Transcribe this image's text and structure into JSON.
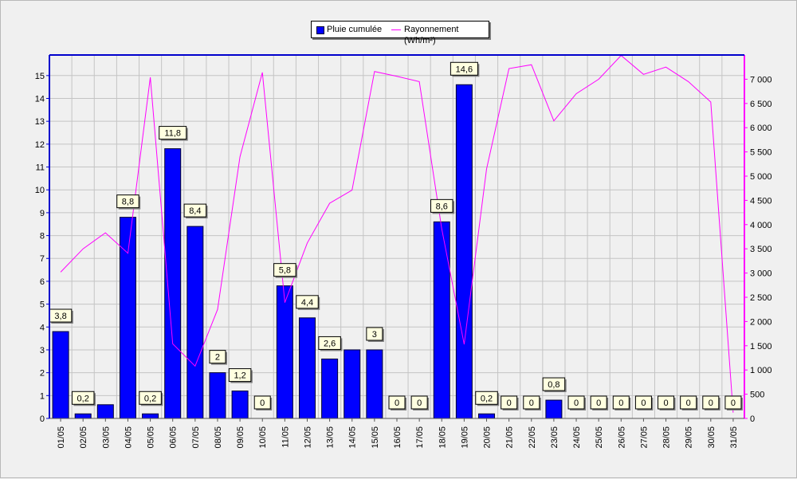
{
  "legend": {
    "bar_label": "Pluie cumulée",
    "line_label": "Rayonnement (Wh/m²)"
  },
  "colors": {
    "bar": "#0000ff",
    "bar_stroke": "#000033",
    "line": "#ff00ff",
    "left_axis": "#0000cc",
    "right_axis": "#ff00ff",
    "grid": "#c4c4c4",
    "label_bg": "#ffffe0"
  },
  "chart_data": {
    "type": "bar",
    "title": "",
    "xlabel": "",
    "grid": true,
    "legend_position": "top-center",
    "categories": [
      "01/05",
      "02/05",
      "03/05",
      "04/05",
      "05/05",
      "06/05",
      "07/05",
      "08/05",
      "09/05",
      "10/05",
      "11/05",
      "12/05",
      "13/05",
      "14/05",
      "15/05",
      "16/05",
      "17/05",
      "18/05",
      "19/05",
      "20/05",
      "21/05",
      "22/05",
      "23/05",
      "24/05",
      "25/05",
      "26/05",
      "27/05",
      "28/05",
      "29/05",
      "30/05",
      "31/05"
    ],
    "y_left": {
      "ylim": [
        0,
        15.9
      ],
      "ticks": [
        0,
        1,
        2,
        3,
        4,
        5,
        6,
        7,
        8,
        9,
        10,
        11,
        12,
        13,
        14,
        15
      ]
    },
    "y_right": {
      "ylim": [
        0,
        7500
      ],
      "ticks": [
        0,
        500,
        1000,
        1500,
        2000,
        2500,
        3000,
        3500,
        4000,
        4500,
        5000,
        5500,
        6000,
        6500,
        7000
      ],
      "tick_labels": [
        "0",
        "500",
        "1 000",
        "1 500",
        "2 000",
        "2 500",
        "3 000",
        "3 500",
        "4 000",
        "4 500",
        "5 000",
        "5 500",
        "6 000",
        "6 500",
        "7 000"
      ]
    },
    "series": [
      {
        "name": "Pluie cumulée",
        "kind": "bar",
        "axis": "left",
        "values": [
          3.8,
          0.2,
          0.6,
          8.8,
          0.2,
          11.8,
          8.4,
          2,
          1.2,
          0,
          5.8,
          4.4,
          2.6,
          3,
          3,
          0,
          0,
          8.6,
          14.6,
          0.2,
          0,
          0,
          0.8,
          0,
          0,
          0,
          0,
          0,
          0,
          0,
          0
        ],
        "labels": [
          "3,8",
          "0,2",
          null,
          "8,8",
          "0,2",
          "11,8",
          "8,4",
          "2",
          "1,2",
          "0",
          "5,8",
          "4,4",
          "2,6",
          null,
          "3",
          "0",
          "0",
          "8,6",
          "14,6",
          "0,2",
          "0",
          "0",
          "0,8",
          "0",
          "0",
          "0",
          "0",
          "0",
          "0",
          "0",
          "0"
        ]
      },
      {
        "name": "Rayonnement (Wh/m²)",
        "kind": "line",
        "axis": "right",
        "values": [
          3020,
          3500,
          3830,
          3410,
          7040,
          1540,
          1080,
          2250,
          5400,
          7140,
          2390,
          3620,
          4440,
          4710,
          7160,
          7060,
          6950,
          3910,
          1530,
          5150,
          7220,
          7300,
          6140,
          6700,
          7000,
          7490,
          7100,
          7250,
          6950,
          6530,
          120
        ]
      }
    ]
  }
}
